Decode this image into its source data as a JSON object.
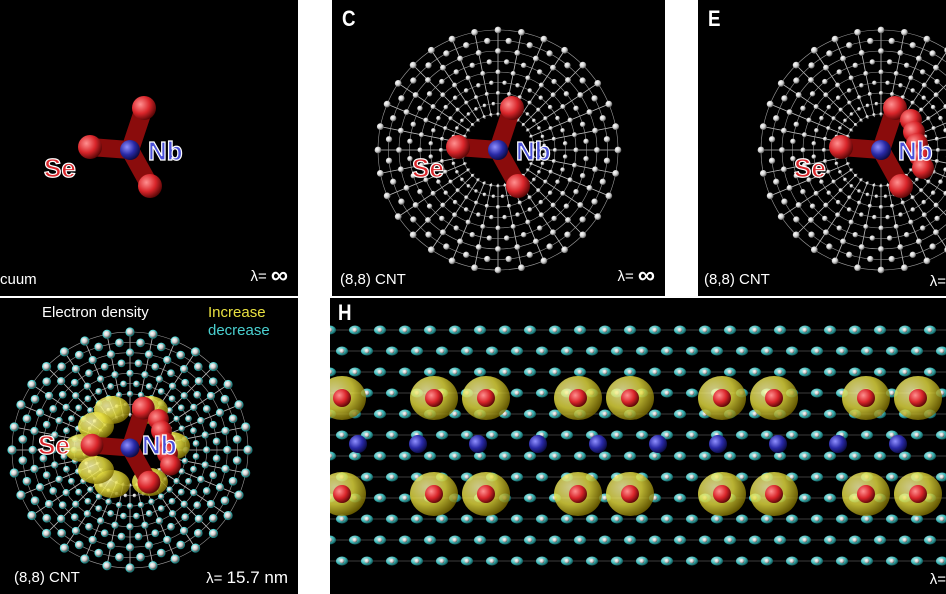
{
  "panels": {
    "a": {
      "caption": "cuum",
      "lambda_label": "λ=",
      "lambda_value": "∞",
      "atom1": "Se",
      "atom2": "Nb"
    },
    "c": {
      "letter": "C",
      "caption": "(8,8) CNT",
      "lambda_label": "λ=",
      "lambda_value": "∞",
      "atom1": "Se",
      "atom2": "Nb"
    },
    "e": {
      "letter": "E",
      "caption": "(8,8) CNT",
      "lambda_label": "λ=",
      "atom1": "Se",
      "atom2": "Nb"
    },
    "g": {
      "legend_title": "Electron density",
      "legend_increase": "Increase",
      "legend_decrease": "decrease",
      "caption": "(8,8) CNT",
      "lambda_label": "λ=",
      "lambda_value": "15.7 nm",
      "atom1": "Se",
      "atom2": "Nb"
    },
    "h": {
      "letter": "H",
      "lambda_label": "λ="
    }
  },
  "colors": {
    "selenium": "#d9252a",
    "niobium": "#2a2aa8",
    "carbon": "#cfcfcf",
    "increase": "#e8e040",
    "decrease": "#4ad0d0"
  }
}
